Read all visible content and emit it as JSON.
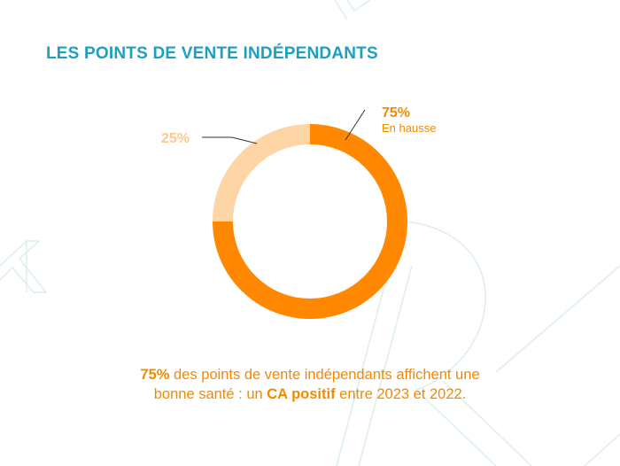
{
  "header": {
    "title": "LES POINTS DE VENTE INDÉPENDANTS"
  },
  "chart_data": {
    "type": "pie",
    "donut": true,
    "slices": [
      {
        "value": 75,
        "label": "75%",
        "sublabel": "En hausse",
        "color": "#ff8800"
      },
      {
        "value": 25,
        "label": "25%",
        "sublabel": "",
        "color": "#fed6a6"
      }
    ]
  },
  "caption": {
    "strong1": "75%",
    "text1": " des points de vente indépendants affichent une",
    "text2": "bonne santé : un ",
    "strong2": "CA positif",
    "text3": " entre 2023 et 2022."
  },
  "colors": {
    "title": "#1c9fc0",
    "caption": "#f28a00",
    "decoration": "#dcefe9"
  }
}
